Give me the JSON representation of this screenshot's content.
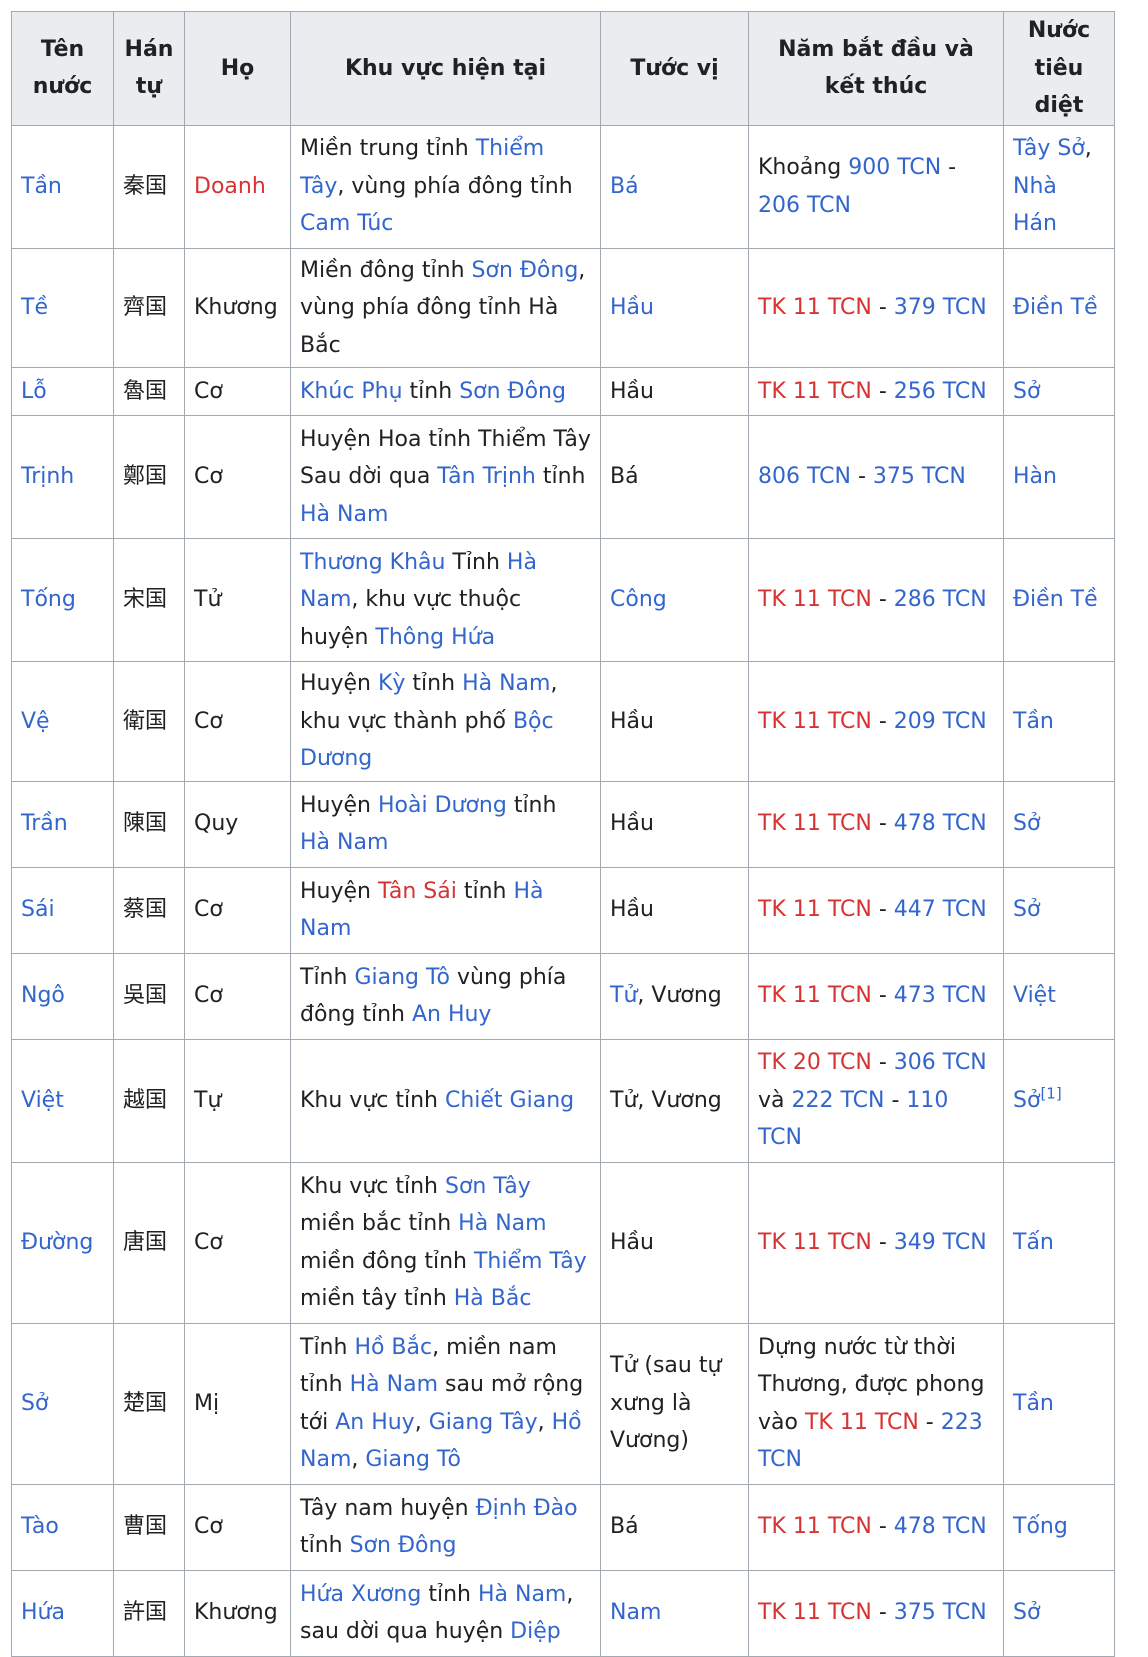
{
  "headers": [
    "Tên nước",
    "Hán tự",
    "Họ",
    "Khu vực hiện tại",
    "Tước vị",
    "Năm bắt đầu và kết thúc",
    "Nước tiêu diệt"
  ],
  "rows": [
    {
      "height": 123,
      "cells": [
        [
          {
            "t": "Tần",
            "s": "link"
          }
        ],
        [
          {
            "t": "秦国"
          }
        ],
        [
          {
            "t": "Doanh",
            "s": "new"
          }
        ],
        [
          {
            "t": "Miền trung tỉnh "
          },
          {
            "t": "Thiểm Tây",
            "s": "link"
          },
          {
            "t": ", vùng phía đông tỉnh "
          },
          {
            "t": "Cam Túc",
            "s": "link"
          }
        ],
        [
          {
            "t": "Bá",
            "s": "link"
          }
        ],
        [
          {
            "t": "Khoảng "
          },
          {
            "t": "900 TCN",
            "s": "link"
          },
          {
            "t": " - "
          },
          {
            "t": "206 TCN",
            "s": "link"
          }
        ],
        [
          {
            "t": "Tây Sở",
            "s": "link"
          },
          {
            "t": ", "
          },
          {
            "t": "Nhà Hán",
            "s": "link"
          }
        ]
      ]
    },
    {
      "height": 86,
      "cells": [
        [
          {
            "t": "Tề",
            "s": "link"
          }
        ],
        [
          {
            "t": "齊国"
          }
        ],
        [
          {
            "t": "Khương"
          }
        ],
        [
          {
            "t": "Miền đông tỉnh "
          },
          {
            "t": "Sơn Đông",
            "s": "link"
          },
          {
            "t": ", vùng phía đông tỉnh Hà Bắc"
          }
        ],
        [
          {
            "t": "Hầu",
            "s": "link"
          }
        ],
        [
          {
            "t": "TK 11 TCN",
            "s": "new"
          },
          {
            "t": " - "
          },
          {
            "t": "379 TCN",
            "s": "link"
          }
        ],
        [
          {
            "t": "Điền Tề",
            "s": "link"
          }
        ]
      ]
    },
    {
      "height": 48,
      "cells": [
        [
          {
            "t": "Lỗ",
            "s": "link"
          }
        ],
        [
          {
            "t": "魯国"
          }
        ],
        [
          {
            "t": "Cơ"
          }
        ],
        [
          {
            "t": "Khúc Phụ",
            "s": "link"
          },
          {
            "t": " tỉnh "
          },
          {
            "t": "Sơn Đông",
            "s": "link"
          }
        ],
        [
          {
            "t": "Hầu"
          }
        ],
        [
          {
            "t": "TK 11 TCN",
            "s": "new"
          },
          {
            "t": " - "
          },
          {
            "t": "256 TCN",
            "s": "link"
          }
        ],
        [
          {
            "t": "Sở",
            "s": "link"
          }
        ]
      ]
    },
    {
      "height": 123,
      "cells": [
        [
          {
            "t": "Trịnh",
            "s": "link"
          }
        ],
        [
          {
            "t": "鄭国"
          }
        ],
        [
          {
            "t": "Cơ"
          }
        ],
        [
          {
            "t": "Huyện Hoa tỉnh Thiểm Tây Sau dời qua "
          },
          {
            "t": "Tân Trịnh",
            "s": "link"
          },
          {
            "t": " tỉnh "
          },
          {
            "t": "Hà Nam",
            "s": "link"
          }
        ],
        [
          {
            "t": "Bá"
          }
        ],
        [
          {
            "t": "806 TCN",
            "s": "link"
          },
          {
            "t": " - "
          },
          {
            "t": "375 TCN",
            "s": "link"
          }
        ],
        [
          {
            "t": "Hàn",
            "s": "link"
          }
        ]
      ]
    },
    {
      "height": 123,
      "cells": [
        [
          {
            "t": "Tống",
            "s": "link"
          }
        ],
        [
          {
            "t": "宋国"
          }
        ],
        [
          {
            "t": "Tử"
          }
        ],
        [
          {
            "t": "Thương Khâu",
            "s": "link"
          },
          {
            "t": " Tỉnh "
          },
          {
            "t": "Hà Nam",
            "s": "link"
          },
          {
            "t": ", khu vực thuộc huyện "
          },
          {
            "t": "Thông Hứa",
            "s": "link"
          }
        ],
        [
          {
            "t": "Công",
            "s": "link"
          }
        ],
        [
          {
            "t": "TK 11 TCN",
            "s": "new"
          },
          {
            "t": " - "
          },
          {
            "t": "286 TCN",
            "s": "link"
          }
        ],
        [
          {
            "t": "Điền Tề",
            "s": "link"
          }
        ]
      ]
    },
    {
      "height": 86,
      "cells": [
        [
          {
            "t": "Vệ",
            "s": "link"
          }
        ],
        [
          {
            "t": "衛国"
          }
        ],
        [
          {
            "t": "Cơ"
          }
        ],
        [
          {
            "t": "Huyện "
          },
          {
            "t": "Kỳ",
            "s": "link"
          },
          {
            "t": " tỉnh "
          },
          {
            "t": "Hà Nam",
            "s": "link"
          },
          {
            "t": ", khu vực thành phố "
          },
          {
            "t": "Bộc Dương",
            "s": "link"
          }
        ],
        [
          {
            "t": "Hầu"
          }
        ],
        [
          {
            "t": "TK 11 TCN",
            "s": "new"
          },
          {
            "t": " - "
          },
          {
            "t": "209 TCN",
            "s": "link"
          }
        ],
        [
          {
            "t": "Tần",
            "s": "link"
          }
        ]
      ]
    },
    {
      "height": 86,
      "cells": [
        [
          {
            "t": "Trần",
            "s": "link"
          }
        ],
        [
          {
            "t": "陳国"
          }
        ],
        [
          {
            "t": "Quy"
          }
        ],
        [
          {
            "t": "Huyện "
          },
          {
            "t": "Hoài Dương",
            "s": "link"
          },
          {
            "t": " tỉnh "
          },
          {
            "t": "Hà Nam",
            "s": "link"
          }
        ],
        [
          {
            "t": "Hầu"
          }
        ],
        [
          {
            "t": "TK 11 TCN",
            "s": "new"
          },
          {
            "t": " - "
          },
          {
            "t": "478 TCN",
            "s": "link"
          }
        ],
        [
          {
            "t": "Sở",
            "s": "link"
          }
        ]
      ]
    },
    {
      "height": 86,
      "cells": [
        [
          {
            "t": "Sái",
            "s": "link"
          }
        ],
        [
          {
            "t": "蔡国"
          }
        ],
        [
          {
            "t": "Cơ"
          }
        ],
        [
          {
            "t": "Huyện "
          },
          {
            "t": "Tân Sái",
            "s": "new"
          },
          {
            "t": " tỉnh "
          },
          {
            "t": "Hà Nam",
            "s": "link"
          }
        ],
        [
          {
            "t": "Hầu"
          }
        ],
        [
          {
            "t": "TK 11 TCN",
            "s": "new"
          },
          {
            "t": " - "
          },
          {
            "t": "447 TCN",
            "s": "link"
          }
        ],
        [
          {
            "t": "Sở",
            "s": "link"
          }
        ]
      ]
    },
    {
      "height": 86,
      "cells": [
        [
          {
            "t": "Ngô",
            "s": "link"
          }
        ],
        [
          {
            "t": "吳国"
          }
        ],
        [
          {
            "t": "Cơ"
          }
        ],
        [
          {
            "t": "Tỉnh "
          },
          {
            "t": "Giang Tô",
            "s": "link"
          },
          {
            "t": " vùng phía đông tỉnh "
          },
          {
            "t": "An Huy",
            "s": "link"
          }
        ],
        [
          {
            "t": "Tử",
            "s": "link"
          },
          {
            "t": ", Vương"
          }
        ],
        [
          {
            "t": "TK 11 TCN",
            "s": "new"
          },
          {
            "t": " - "
          },
          {
            "t": "473 TCN",
            "s": "link"
          }
        ],
        [
          {
            "t": "Việt",
            "s": "link"
          }
        ]
      ]
    },
    {
      "height": 123,
      "cells": [
        [
          {
            "t": "Việt",
            "s": "link"
          }
        ],
        [
          {
            "t": "越国"
          }
        ],
        [
          {
            "t": "Tự"
          }
        ],
        [
          {
            "t": "Khu vực tỉnh "
          },
          {
            "t": "Chiết Giang",
            "s": "link"
          }
        ],
        [
          {
            "t": "Tử, Vương"
          }
        ],
        [
          {
            "t": "TK 20 TCN",
            "s": "new"
          },
          {
            "t": " - "
          },
          {
            "t": "306 TCN",
            "s": "link"
          },
          {
            "t": " và "
          },
          {
            "t": "222 TCN",
            "s": "link"
          },
          {
            "t": " - "
          },
          {
            "t": "110 TCN",
            "s": "link"
          }
        ],
        [
          {
            "t": "Sở",
            "s": "link"
          },
          {
            "t": "[1]",
            "s": "sup"
          }
        ]
      ]
    },
    {
      "height": 161,
      "cells": [
        [
          {
            "t": "Đường",
            "s": "link"
          }
        ],
        [
          {
            "t": "唐国"
          }
        ],
        [
          {
            "t": "Cơ"
          }
        ],
        [
          {
            "t": "Khu vực tỉnh "
          },
          {
            "t": "Sơn Tây",
            "s": "link"
          },
          {
            "t": " miền bắc tỉnh "
          },
          {
            "t": "Hà Nam",
            "s": "link"
          },
          {
            "t": " miền đông tỉnh "
          },
          {
            "t": "Thiểm Tây",
            "s": "link"
          },
          {
            "t": " miền tây tỉnh "
          },
          {
            "t": "Hà Bắc",
            "s": "link"
          }
        ],
        [
          {
            "t": "Hầu"
          }
        ],
        [
          {
            "t": "TK 11 TCN",
            "s": "new"
          },
          {
            "t": " - "
          },
          {
            "t": "349 TCN",
            "s": "link"
          }
        ],
        [
          {
            "t": "Tấn",
            "s": "link"
          }
        ]
      ]
    },
    {
      "height": 161,
      "cells": [
        [
          {
            "t": "Sở",
            "s": "link"
          }
        ],
        [
          {
            "t": "楚国"
          }
        ],
        [
          {
            "t": "Mị"
          }
        ],
        [
          {
            "t": "Tỉnh "
          },
          {
            "t": "Hồ Bắc",
            "s": "link"
          },
          {
            "t": ", miền nam tỉnh "
          },
          {
            "t": "Hà Nam",
            "s": "link"
          },
          {
            "t": " sau mở rộng tới "
          },
          {
            "t": "An Huy",
            "s": "link"
          },
          {
            "t": ", "
          },
          {
            "t": "Giang Tây",
            "s": "link"
          },
          {
            "t": ", "
          },
          {
            "t": "Hồ Nam",
            "s": "link"
          },
          {
            "t": ", "
          },
          {
            "t": "Giang Tô",
            "s": "link"
          }
        ],
        [
          {
            "t": "Tử (sau tự xưng là Vương)"
          }
        ],
        [
          {
            "t": "Dựng nước từ thời Thương, được phong vào "
          },
          {
            "t": "TK 11 TCN",
            "s": "new"
          },
          {
            "t": " - "
          },
          {
            "t": "223 TCN",
            "s": "link"
          }
        ],
        [
          {
            "t": "Tần",
            "s": "link"
          }
        ]
      ]
    },
    {
      "height": 86,
      "cells": [
        [
          {
            "t": "Tào",
            "s": "link"
          }
        ],
        [
          {
            "t": "曹国"
          }
        ],
        [
          {
            "t": "Cơ"
          }
        ],
        [
          {
            "t": "Tây nam huyện "
          },
          {
            "t": "Định Đào",
            "s": "link"
          },
          {
            "t": " tỉnh "
          },
          {
            "t": "Sơn Đông",
            "s": "link"
          }
        ],
        [
          {
            "t": "Bá"
          }
        ],
        [
          {
            "t": "TK 11 TCN",
            "s": "new"
          },
          {
            "t": " - "
          },
          {
            "t": "478 TCN",
            "s": "link"
          }
        ],
        [
          {
            "t": "Tống",
            "s": "link"
          }
        ]
      ]
    },
    {
      "height": 86,
      "cells": [
        [
          {
            "t": "Hứa",
            "s": "link"
          }
        ],
        [
          {
            "t": "許国"
          }
        ],
        [
          {
            "t": "Khương"
          }
        ],
        [
          {
            "t": "Hứa Xương",
            "s": "link"
          },
          {
            "t": " tỉnh "
          },
          {
            "t": "Hà Nam",
            "s": "link"
          },
          {
            "t": ", sau dời qua huyện "
          },
          {
            "t": "Diệp",
            "s": "link"
          }
        ],
        [
          {
            "t": "Nam",
            "s": "link"
          }
        ],
        [
          {
            "t": "TK 11 TCN",
            "s": "new"
          },
          {
            "t": " - "
          },
          {
            "t": "375 TCN",
            "s": "link"
          }
        ],
        [
          {
            "t": "Sở",
            "s": "link"
          }
        ]
      ]
    }
  ]
}
